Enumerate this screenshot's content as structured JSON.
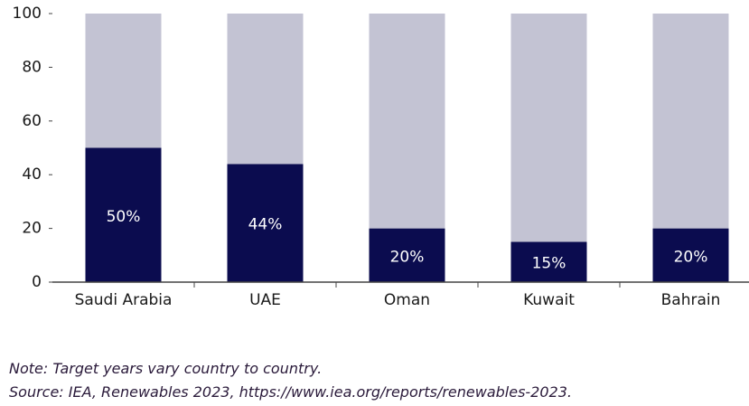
{
  "chart_data": {
    "type": "stacked-bar",
    "categories": [
      "Saudi Arabia",
      "UAE",
      "Oman",
      "Kuwait",
      "Bahrain"
    ],
    "series": [
      {
        "color": "#0b0c4f",
        "values": [
          50,
          44,
          20,
          15,
          20
        ],
        "value_labels": [
          "50%",
          "44%",
          "20%",
          "15%",
          "20%"
        ]
      },
      {
        "color": "#c3c3d3",
        "values": [
          50,
          56,
          80,
          85,
          80
        ]
      }
    ],
    "ylim": [
      0,
      100
    ],
    "yticks": [
      0,
      20,
      40,
      60,
      80,
      100
    ],
    "grid": false
  },
  "notes": [
    "Note: Target years vary country to country.",
    "Source: IEA, Renewables 2023, https://www.iea.org/reports/renewables-2023."
  ]
}
